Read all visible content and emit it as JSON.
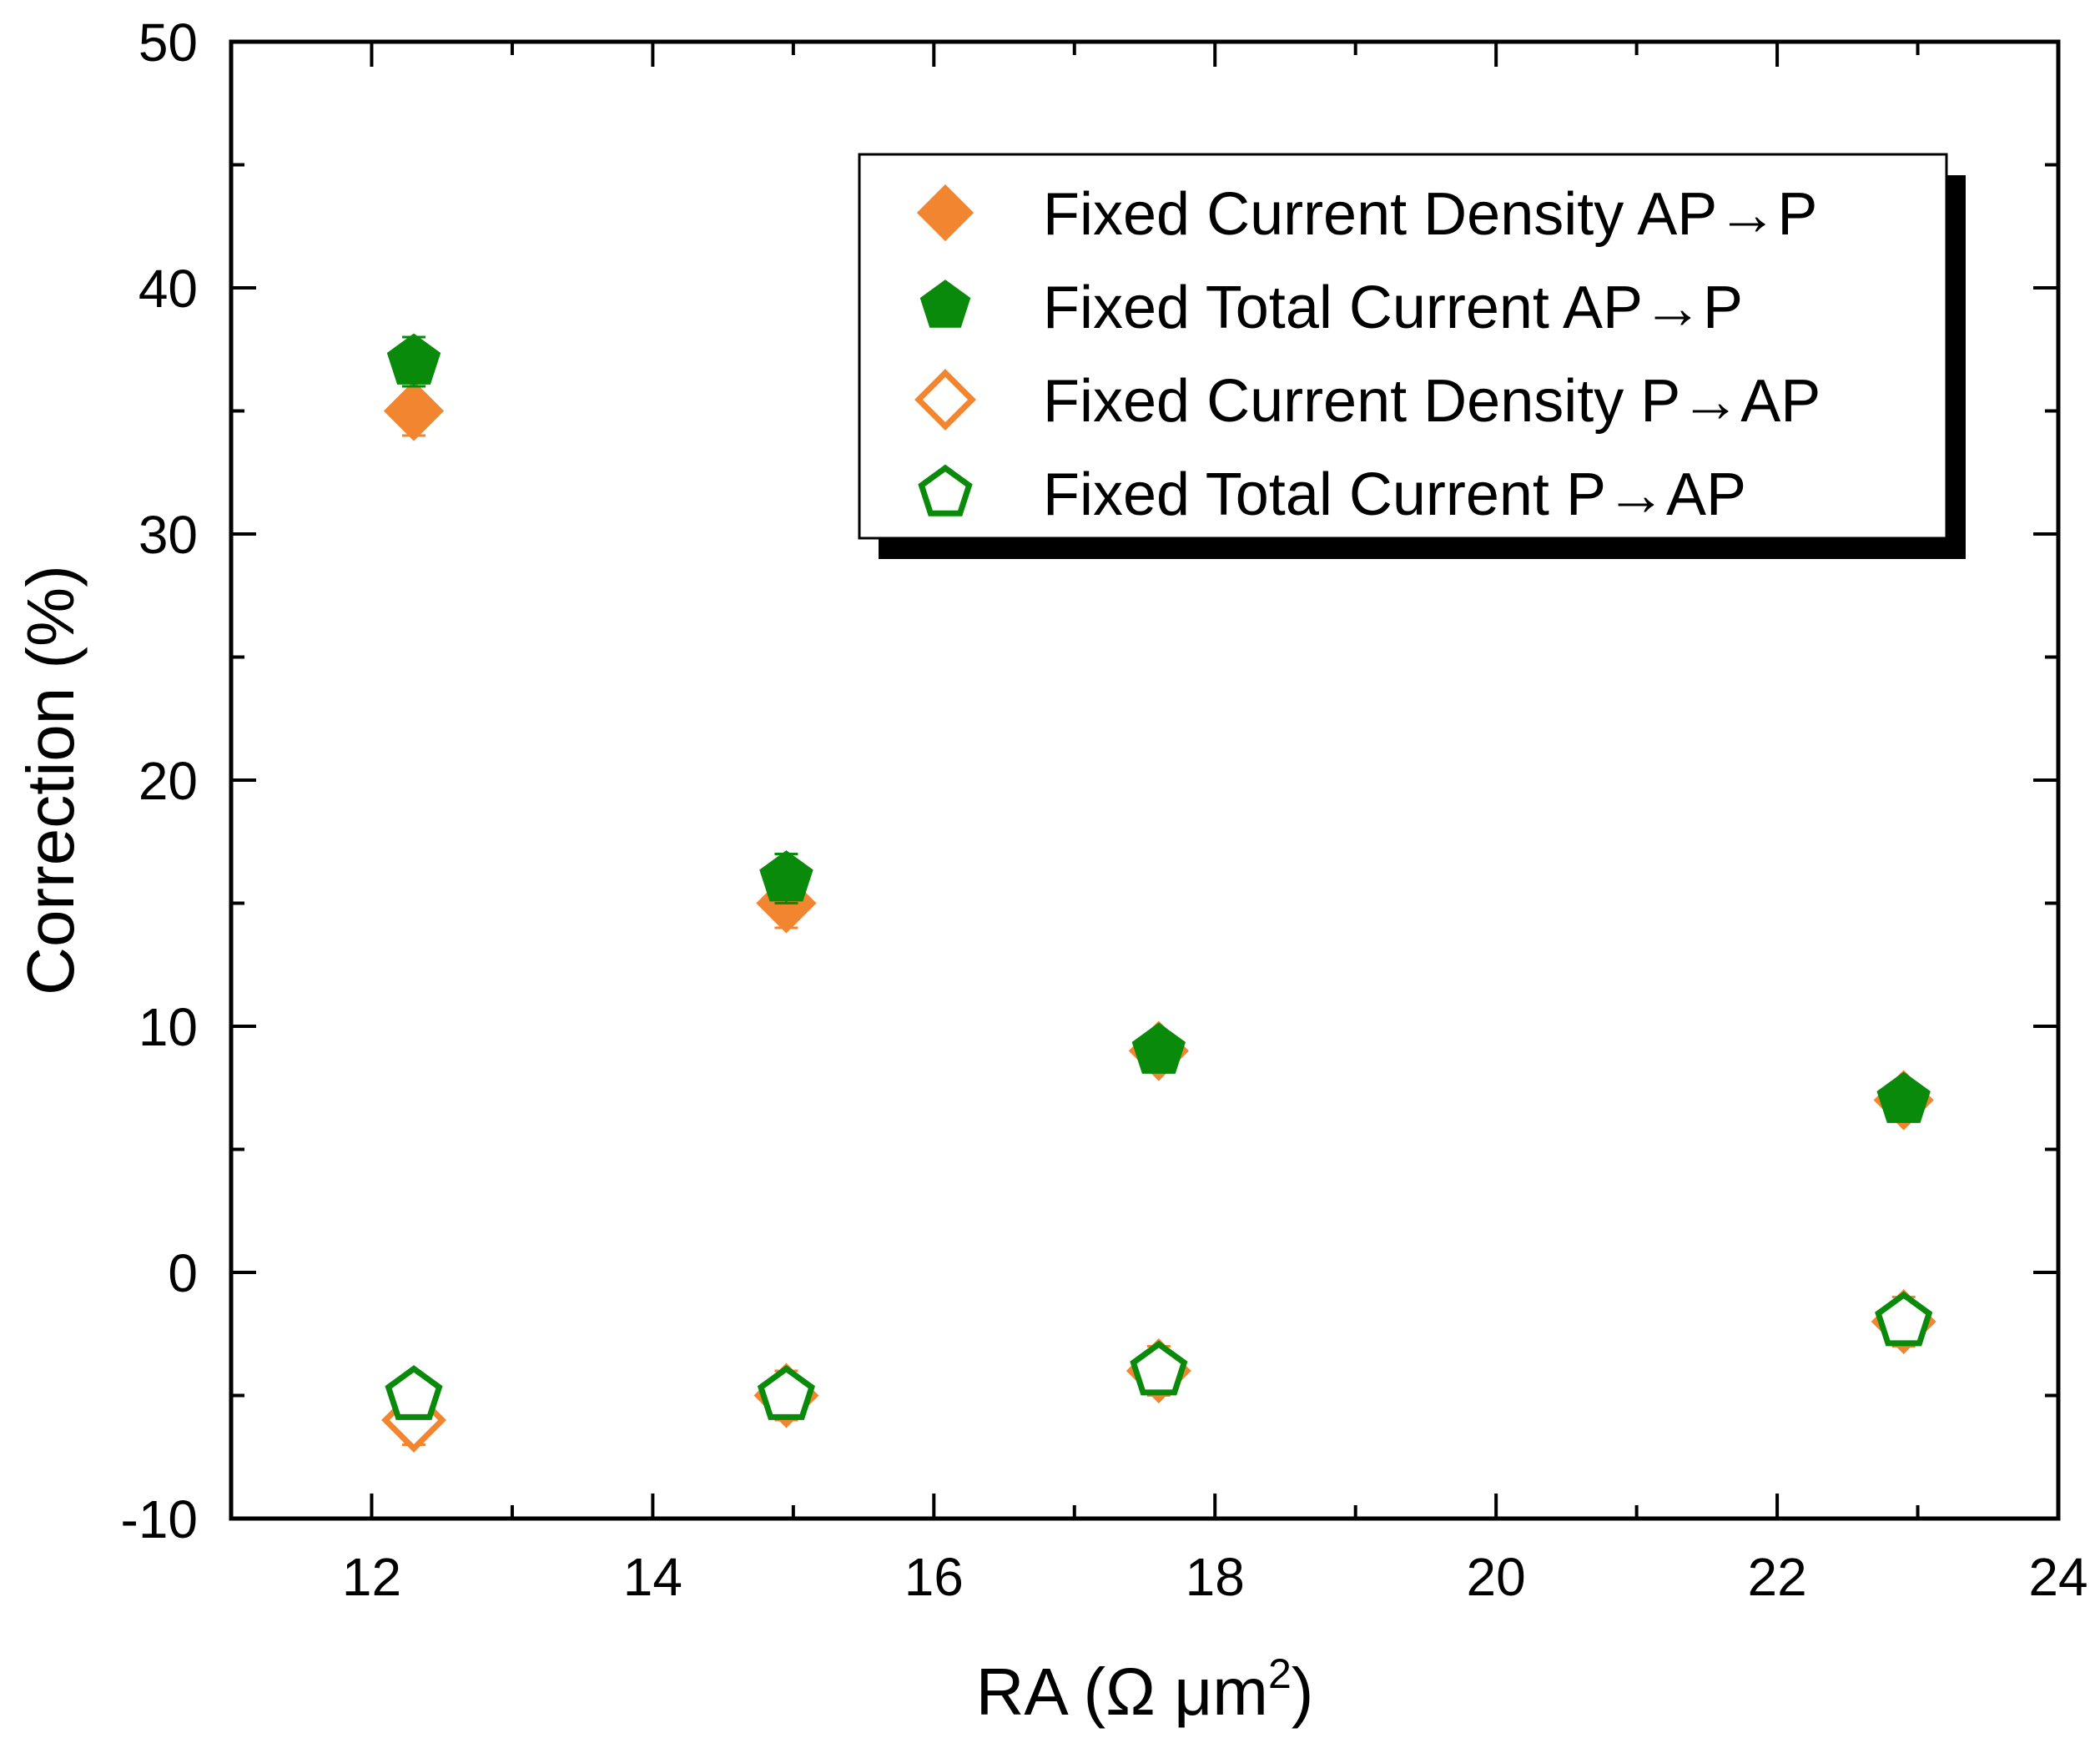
{
  "chart_data": {
    "type": "scatter",
    "xlabel_main": "RA (Ω μm",
    "xlabel_sup": "2",
    "xlabel_end": ")",
    "ylabel": "Correction (%)",
    "xlim": [
      11,
      24
    ],
    "ylim": [
      -10,
      50
    ],
    "x_ticks": [
      12,
      14,
      16,
      18,
      20,
      22,
      24
    ],
    "y_ticks": [
      -10,
      0,
      10,
      20,
      30,
      40,
      50
    ],
    "x_minor_step": 1,
    "y_minor_step": 5,
    "series": [
      {
        "name": "Fixed Current Density AP→P",
        "marker": "diamond",
        "filled": true,
        "color": "#F28530",
        "x": [
          12.3,
          14.95,
          17.6,
          22.9
        ],
        "y": [
          35,
          15,
          9,
          7
        ],
        "err": [
          1.0,
          1.0,
          0.6,
          0.6
        ]
      },
      {
        "name": "Fixed Total Current AP→P",
        "marker": "pentagon",
        "filled": true,
        "color": "#0A8A0A",
        "x": [
          12.3,
          14.95,
          17.6,
          22.9
        ],
        "y": [
          37,
          16,
          9,
          7
        ],
        "err": [
          1.0,
          1.0,
          0.5,
          0.5
        ]
      },
      {
        "name": "Fixed Current Density P→AP",
        "marker": "diamond",
        "filled": false,
        "color": "#F28530",
        "x": [
          12.3,
          14.95,
          17.6,
          22.9
        ],
        "y": [
          -6,
          -5,
          -4,
          -2
        ],
        "err": [
          1.0,
          1.0,
          1.0,
          1.0
        ]
      },
      {
        "name": "Fixed Total Current P→AP",
        "marker": "pentagon",
        "filled": false,
        "color": "#0A8A0A",
        "x": [
          12.3,
          14.95,
          17.6,
          22.9
        ],
        "y": [
          -5,
          -5,
          -4,
          -2
        ],
        "err": [
          0.8,
          0.8,
          0.8,
          0.8
        ]
      }
    ]
  }
}
